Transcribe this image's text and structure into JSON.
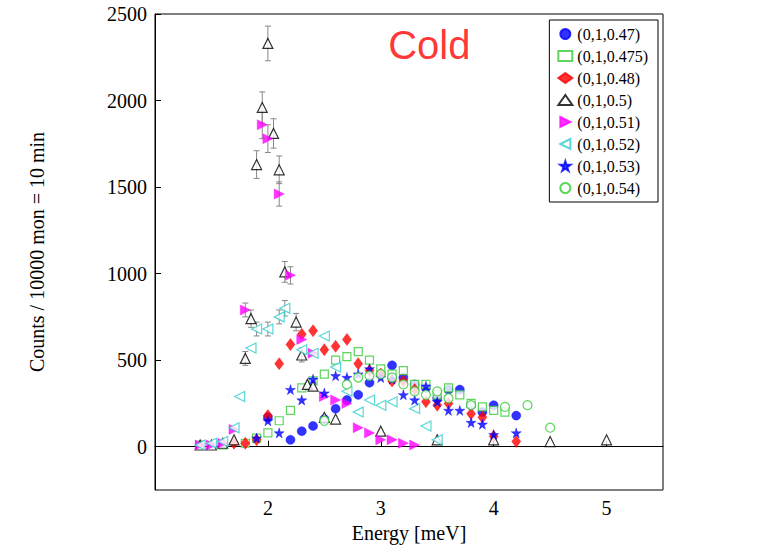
{
  "chart_data": {
    "type": "scatter",
    "x_label": "Energy [meV]",
    "y_label": "Counts / 10000 mon = 10 min",
    "xlim": [
      1,
      5.5
    ],
    "xticks": [
      2,
      3,
      4,
      5
    ],
    "ylim": [
      -250,
      2500
    ],
    "yticks": [
      0,
      500,
      1000,
      1500,
      2000,
      2500
    ],
    "grid": false,
    "legend": "upper right",
    "annotations": [
      {
        "text": "Cold",
        "x": 3.43,
        "y": 2320,
        "color": "#ff0000"
      }
    ],
    "series": [
      {
        "name": "(0,1,0.47)",
        "color": "#0000ff",
        "marker": "circle",
        "x": [
          2.0,
          2.2,
          2.3,
          2.4,
          2.5,
          2.6,
          2.7,
          2.8,
          2.9,
          3.0,
          3.1,
          3.2,
          3.3,
          3.4,
          3.5,
          3.6,
          3.7,
          3.8,
          3.9,
          4.0,
          4.2
        ],
        "values": [
          170,
          40,
          90,
          120,
          160,
          220,
          270,
          300,
          370,
          420,
          470,
          400,
          360,
          340,
          280,
          330,
          330,
          240,
          200,
          240,
          180
        ]
      },
      {
        "name": "(0,1,0.475)",
        "color": "#33cc33",
        "marker": "open-square",
        "x": [
          1.4,
          1.6,
          1.8,
          1.9,
          2.0,
          2.1,
          2.2,
          2.3,
          2.4,
          2.5,
          2.6,
          2.7,
          2.8,
          2.9,
          3.0,
          3.1,
          3.2,
          3.3,
          3.4,
          3.5,
          3.6,
          3.7,
          3.8,
          3.9,
          4.0,
          4.1
        ],
        "values": [
          10,
          10,
          20,
          50,
          80,
          150,
          210,
          340,
          380,
          420,
          500,
          520,
          550,
          500,
          450,
          420,
          440,
          360,
          360,
          300,
          340,
          300,
          250,
          230,
          210,
          200
        ]
      },
      {
        "name": "(0,1,0.48)",
        "color": "#ff0000",
        "marker": "diamond",
        "x": [
          1.7,
          1.8,
          1.9,
          2.0,
          2.1,
          2.2,
          2.3,
          2.4,
          2.5,
          2.6,
          2.7,
          2.8,
          2.9,
          3.0,
          3.1,
          3.2,
          3.3,
          3.4,
          3.5,
          3.6,
          3.8,
          3.9,
          4.0,
          4.2
        ],
        "values": [
          20,
          20,
          40,
          180,
          480,
          590,
          650,
          670,
          560,
          580,
          620,
          480,
          440,
          420,
          380,
          380,
          330,
          260,
          240,
          250,
          190,
          170,
          60,
          30
        ]
      },
      {
        "name": "(0,1,0.5)",
        "color": "#000000",
        "marker": "open-triangle",
        "x": [
          1.4,
          1.5,
          1.6,
          1.7,
          1.8,
          1.85,
          1.9,
          1.95,
          2.0,
          2.05,
          2.1,
          2.15,
          2.25,
          2.3,
          2.35,
          2.4,
          2.5,
          2.6,
          3.0,
          3.5,
          4.0,
          4.5,
          5.0
        ],
        "values": [
          10,
          10,
          20,
          40,
          510,
          740,
          1630,
          1960,
          2330,
          1810,
          1600,
          1010,
          720,
          530,
          360,
          350,
          170,
          160,
          90,
          40,
          40,
          30,
          40
        ],
        "errors": [
          null,
          null,
          null,
          null,
          40,
          50,
          80,
          90,
          100,
          85,
          80,
          60,
          50,
          40,
          null,
          null,
          null,
          null,
          null,
          null,
          null,
          null,
          null
        ]
      },
      {
        "name": "(0,1,0.51)",
        "color": "#ff00ff",
        "marker": "triangle-right",
        "x": [
          1.4,
          1.5,
          1.6,
          1.7,
          1.8,
          1.95,
          2.0,
          2.1,
          2.2,
          2.3,
          2.4,
          2.5,
          2.6,
          2.7,
          2.8,
          2.9,
          3.0,
          3.1,
          3.2,
          3.3
        ],
        "values": [
          10,
          10,
          20,
          100,
          790,
          1860,
          1780,
          1460,
          990,
          620,
          540,
          290,
          270,
          250,
          110,
          80,
          40,
          40,
          20,
          10
        ],
        "errors": [
          null,
          null,
          null,
          null,
          40,
          80,
          80,
          70,
          50,
          null,
          null,
          null,
          null,
          null,
          null,
          null,
          null,
          null,
          null,
          null
        ]
      },
      {
        "name": "(0,1,0.52)",
        "color": "#33cccc",
        "marker": "open-triangle-left",
        "x": [
          1.4,
          1.5,
          1.6,
          1.7,
          1.75,
          1.85,
          1.9,
          2.0,
          2.1,
          2.15,
          2.3,
          2.4,
          2.5,
          2.6,
          2.7,
          2.8,
          2.9,
          3.0,
          3.1,
          3.3,
          3.4,
          3.5
        ],
        "values": [
          10,
          20,
          30,
          110,
          290,
          570,
          680,
          680,
          750,
          800,
          560,
          540,
          640,
          460,
          320,
          200,
          270,
          240,
          260,
          220,
          120,
          40
        ],
        "errors": [
          null,
          null,
          null,
          null,
          null,
          null,
          40,
          40,
          40,
          45,
          null,
          null,
          null,
          null,
          null,
          null,
          null,
          null,
          null,
          null,
          null,
          null
        ]
      },
      {
        "name": "(0,1,0.53)",
        "color": "#0000ff",
        "marker": "star",
        "x": [
          1.9,
          2.0,
          2.1,
          2.2,
          2.3,
          2.4,
          2.5,
          2.6,
          2.7,
          2.8,
          2.9,
          3.0,
          3.1,
          3.2,
          3.3,
          3.4,
          3.5,
          3.6,
          3.7,
          3.8,
          3.9,
          4.0,
          4.2
        ],
        "values": [
          50,
          150,
          80,
          330,
          270,
          390,
          310,
          410,
          400,
          420,
          450,
          400,
          390,
          300,
          270,
          350,
          260,
          210,
          210,
          140,
          130,
          70,
          80
        ]
      },
      {
        "name": "(0,1,0.54)",
        "color": "#33cc33",
        "marker": "open-circle",
        "x": [
          2.5,
          2.7,
          2.8,
          2.9,
          3.0,
          3.1,
          3.2,
          3.3,
          3.4,
          3.5,
          3.6,
          3.8,
          4.1,
          4.3,
          4.5
        ],
        "values": [
          150,
          360,
          400,
          410,
          420,
          400,
          360,
          320,
          300,
          320,
          280,
          240,
          230,
          240,
          110
        ]
      }
    ]
  }
}
